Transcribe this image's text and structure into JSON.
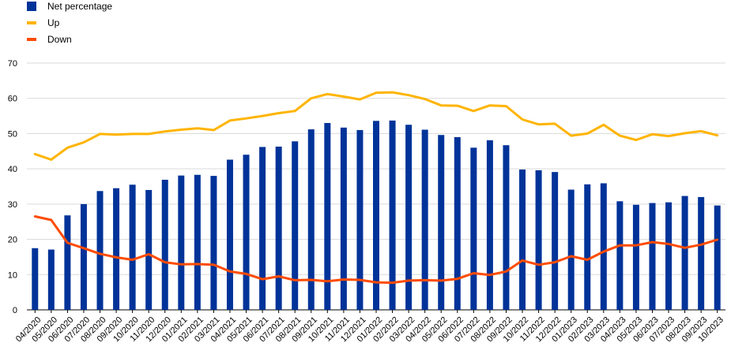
{
  "chart_data": {
    "type": "bar+line",
    "categories": [
      "04/2020",
      "05/2020",
      "06/2020",
      "07/2020",
      "08/2020",
      "09/2020",
      "10/2020",
      "11/2020",
      "12/2020",
      "01/2021",
      "02/2021",
      "03/2021",
      "04/2021",
      "05/2021",
      "06/2021",
      "07/2021",
      "08/2021",
      "09/2021",
      "10/2021",
      "11/2021",
      "12/2021",
      "01/2022",
      "02/2022",
      "03/2022",
      "04/2022",
      "05/2022",
      "06/2022",
      "07/2022",
      "08/2022",
      "09/2022",
      "10/2022",
      "11/2022",
      "12/2022",
      "01/2023",
      "02/2023",
      "03/2023",
      "04/2023",
      "05/2023",
      "06/2023",
      "07/2023",
      "08/2023",
      "09/2023",
      "10/2023"
    ],
    "series": [
      {
        "name": "Net percentage",
        "type": "bar",
        "color": "#003399",
        "values": [
          17.5,
          17.1,
          26.8,
          30.0,
          33.7,
          34.5,
          35.5,
          34.0,
          36.9,
          38.1,
          38.3,
          38.0,
          42.6,
          44.0,
          46.2,
          46.3,
          47.8,
          51.2,
          53.0,
          51.7,
          51.0,
          53.6,
          53.7,
          52.5,
          51.1,
          49.6,
          49.0,
          46.0,
          48.1,
          46.7,
          39.8,
          39.6,
          39.1,
          34.1,
          35.6,
          35.9,
          30.8,
          29.8,
          30.3,
          30.5,
          32.3,
          32.0,
          29.6
        ]
      },
      {
        "name": "Up",
        "type": "line",
        "color": "#FFB400",
        "values": [
          44.2,
          42.6,
          46.0,
          47.5,
          49.9,
          49.7,
          49.9,
          49.9,
          50.6,
          51.1,
          51.5,
          51.0,
          53.7,
          54.3,
          55.0,
          55.8,
          56.4,
          60.0,
          61.2,
          60.5,
          59.7,
          61.6,
          61.7,
          60.9,
          59.8,
          58.0,
          57.9,
          56.4,
          58.0,
          57.8,
          54.0,
          52.6,
          52.8,
          49.4,
          50.0,
          52.5,
          49.4,
          48.2,
          49.8,
          49.3,
          50.1,
          50.7,
          49.5
        ]
      },
      {
        "name": "Down",
        "type": "line",
        "color": "#FF4B00",
        "values": [
          26.5,
          25.5,
          19.0,
          17.5,
          15.9,
          14.9,
          14.2,
          15.8,
          13.5,
          12.9,
          13.0,
          12.8,
          10.9,
          10.2,
          8.7,
          9.5,
          8.4,
          8.5,
          8.1,
          8.6,
          8.5,
          7.8,
          7.7,
          8.3,
          8.4,
          8.3,
          8.8,
          10.4,
          9.9,
          10.9,
          14.0,
          12.8,
          13.5,
          15.2,
          14.2,
          16.5,
          18.3,
          18.3,
          19.2,
          18.7,
          17.6,
          18.5,
          19.9
        ]
      }
    ],
    "ylim": [
      0,
      70
    ],
    "yticks": [
      0,
      10,
      20,
      30,
      40,
      50,
      60,
      70
    ],
    "grid": true,
    "legend_position": "top-left"
  }
}
